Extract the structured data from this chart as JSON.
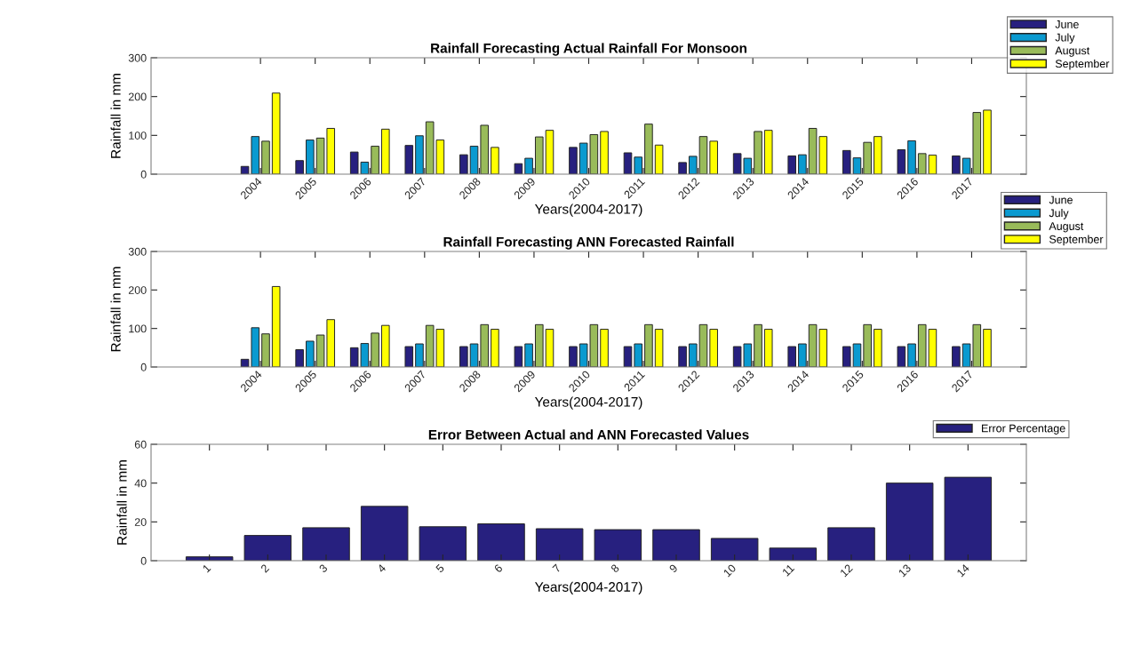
{
  "chart_data": [
    {
      "type": "bar",
      "title": "Rainfall Forecasting Actual Rainfall For Monsoon",
      "xlabel": "Years(2004-2017)",
      "ylabel": "Rainfall in mm",
      "x": [
        2004,
        2005,
        2006,
        2007,
        2008,
        2009,
        2010,
        2011,
        2012,
        2013,
        2014,
        2015,
        2016,
        2017
      ],
      "xlim": [
        2002,
        2018
      ],
      "xticks": [
        2004,
        2005,
        2006,
        2007,
        2008,
        2009,
        2010,
        2011,
        2012,
        2013,
        2014,
        2015,
        2016,
        2017
      ],
      "ylim": [
        0,
        300
      ],
      "yticks": [
        0,
        100,
        200,
        300
      ],
      "grid": false,
      "legend": "top right",
      "series": [
        {
          "name": "June",
          "color": "#27207f",
          "values": [
            20,
            35,
            57,
            74,
            50,
            27,
            69,
            55,
            30,
            53,
            47,
            61,
            63,
            47
          ]
        },
        {
          "name": "July",
          "color": "#0a9ad0",
          "values": [
            97,
            88,
            31,
            99,
            72,
            41,
            80,
            44,
            46,
            41,
            50,
            42,
            86,
            41
          ]
        },
        {
          "name": "August",
          "color": "#99bb5a",
          "values": [
            85,
            93,
            72,
            135,
            126,
            96,
            102,
            129,
            97,
            110,
            118,
            82,
            53,
            159
          ]
        },
        {
          "name": "September",
          "color": "#ffff00",
          "values": [
            209,
            118,
            116,
            88,
            69,
            113,
            110,
            75,
            85,
            113,
            97,
            97,
            49,
            165
          ]
        }
      ]
    },
    {
      "type": "bar",
      "title": "Rainfall Forecasting ANN Forecasted Rainfall",
      "xlabel": "Years(2004-2017)",
      "ylabel": "Rainfall in mm",
      "x": [
        2004,
        2005,
        2006,
        2007,
        2008,
        2009,
        2010,
        2011,
        2012,
        2013,
        2014,
        2015,
        2016,
        2017
      ],
      "xlim": [
        2002,
        2018
      ],
      "xticks": [
        2004,
        2005,
        2006,
        2007,
        2008,
        2009,
        2010,
        2011,
        2012,
        2013,
        2014,
        2015,
        2016,
        2017
      ],
      "ylim": [
        0,
        300
      ],
      "yticks": [
        0,
        100,
        200,
        300
      ],
      "grid": false,
      "legend": "top right",
      "series": [
        {
          "name": "June",
          "color": "#27207f",
          "values": [
            20,
            45,
            50,
            53,
            53,
            53,
            53,
            53,
            53,
            53,
            53,
            53,
            53,
            53
          ]
        },
        {
          "name": "July",
          "color": "#0a9ad0",
          "values": [
            102,
            67,
            61,
            60,
            60,
            60,
            60,
            60,
            60,
            60,
            60,
            60,
            60,
            60
          ]
        },
        {
          "name": "August",
          "color": "#99bb5a",
          "values": [
            86,
            83,
            88,
            108,
            110,
            110,
            110,
            110,
            110,
            110,
            110,
            110,
            110,
            110
          ]
        },
        {
          "name": "September",
          "color": "#ffff00",
          "values": [
            209,
            123,
            108,
            98,
            98,
            98,
            98,
            98,
            98,
            98,
            98,
            98,
            98,
            98
          ]
        }
      ]
    },
    {
      "type": "bar",
      "title": "Error Between Actual and ANN Forecasted Values",
      "xlabel": "Years(2004-2017)",
      "ylabel": "Rainfall in mm",
      "x": [
        1,
        2,
        3,
        4,
        5,
        6,
        7,
        8,
        9,
        10,
        11,
        12,
        13,
        14
      ],
      "xlim": [
        0,
        15
      ],
      "xticks": [
        1,
        2,
        3,
        4,
        5,
        6,
        7,
        8,
        9,
        10,
        11,
        12,
        13,
        14
      ],
      "ylim": [
        0,
        60
      ],
      "yticks": [
        0,
        20,
        40,
        60
      ],
      "grid": false,
      "legend": "top right",
      "series": [
        {
          "name": "Error Percentage",
          "color": "#27207f",
          "values": [
            2,
            13,
            17,
            28,
            17.5,
            19,
            16.5,
            16,
            16,
            11.5,
            6.5,
            17,
            40,
            43
          ]
        }
      ]
    }
  ]
}
